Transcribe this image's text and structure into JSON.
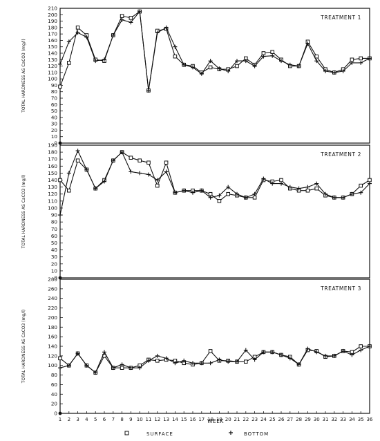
{
  "figure": {
    "xlabel": "WEEK",
    "ylabel": "TOTAL HARDNESS AS CaCO3 (mg/l)",
    "legend": {
      "surface": "SURFACE",
      "bottom": "BOTTOM",
      "placement": "bottom-center"
    },
    "colors": {
      "ink": "#111111",
      "background": "#ffffff"
    },
    "marker_surface": "open-square",
    "marker_bottom": "plus"
  },
  "chart_data": [
    {
      "type": "line",
      "title": "TREATMENT 1",
      "x": [
        1,
        2,
        3,
        4,
        5,
        6,
        7,
        8,
        9,
        10,
        11,
        12,
        13,
        14,
        15,
        16,
        17,
        18,
        19,
        20,
        21,
        22,
        23,
        24,
        25,
        26,
        27,
        28,
        29,
        30,
        31,
        32,
        33,
        34,
        35,
        36
      ],
      "ylim": [
        0,
        210
      ],
      "yticks": [
        0,
        10,
        20,
        30,
        40,
        50,
        60,
        70,
        80,
        90,
        100,
        110,
        120,
        130,
        140,
        150,
        160,
        170,
        180,
        190,
        200,
        210
      ],
      "grid": false,
      "series": [
        {
          "name": "SURFACE",
          "marker": "square",
          "values": [
            88,
            125,
            180,
            168,
            130,
            128,
            168,
            198,
            195,
            205,
            82,
            175,
            178,
            135,
            122,
            120,
            110,
            118,
            115,
            115,
            120,
            132,
            122,
            140,
            142,
            130,
            120,
            120,
            158,
            135,
            115,
            110,
            115,
            130,
            132,
            132
          ]
        },
        {
          "name": "BOTTOM",
          "marker": "plus",
          "values": [
            123,
            158,
            172,
            165,
            128,
            130,
            168,
            192,
            188,
            205,
            82,
            172,
            180,
            150,
            122,
            118,
            108,
            128,
            116,
            112,
            128,
            128,
            120,
            135,
            136,
            128,
            122,
            120,
            155,
            128,
            112,
            110,
            112,
            125,
            125,
            132
          ]
        }
      ]
    },
    {
      "type": "line",
      "title": "TREATMENT 2",
      "x": [
        1,
        2,
        3,
        4,
        5,
        6,
        7,
        8,
        9,
        10,
        11,
        12,
        13,
        14,
        15,
        16,
        17,
        18,
        19,
        20,
        21,
        22,
        23,
        24,
        25,
        26,
        27,
        28,
        29,
        30,
        31,
        32,
        33,
        34,
        35,
        36
      ],
      "ylim": [
        0,
        190
      ],
      "yticks": [
        0,
        10,
        20,
        30,
        40,
        50,
        60,
        70,
        80,
        90,
        100,
        110,
        120,
        130,
        140,
        150,
        160,
        170,
        180,
        190
      ],
      "grid": false,
      "series": [
        {
          "name": "SURFACE",
          "marker": "square",
          "values": [
            140,
            125,
            168,
            155,
            128,
            140,
            168,
            180,
            172,
            168,
            165,
            132,
            165,
            122,
            125,
            125,
            125,
            120,
            110,
            120,
            118,
            115,
            115,
            140,
            138,
            140,
            128,
            125,
            125,
            128,
            118,
            115,
            115,
            120,
            132,
            140
          ]
        },
        {
          "name": "BOTTOM",
          "marker": "plus",
          "values": [
            90,
            150,
            182,
            155,
            128,
            138,
            168,
            180,
            152,
            150,
            148,
            140,
            152,
            122,
            125,
            122,
            125,
            115,
            118,
            130,
            120,
            115,
            120,
            142,
            135,
            135,
            130,
            128,
            130,
            135,
            120,
            115,
            115,
            120,
            122,
            135
          ]
        }
      ]
    },
    {
      "type": "line",
      "title": "TREATMENT 3",
      "x": [
        1,
        2,
        3,
        4,
        5,
        6,
        7,
        8,
        9,
        10,
        11,
        12,
        13,
        14,
        15,
        16,
        17,
        18,
        19,
        20,
        21,
        22,
        23,
        24,
        25,
        26,
        27,
        28,
        29,
        30,
        31,
        32,
        33,
        34,
        35,
        36
      ],
      "ylim": [
        0,
        280
      ],
      "yticks": [
        0,
        20,
        40,
        60,
        80,
        100,
        120,
        140,
        160,
        180,
        200,
        220,
        240,
        260,
        280
      ],
      "grid": false,
      "series": [
        {
          "name": "SURFACE",
          "marker": "square",
          "values": [
            115,
            100,
            125,
            100,
            85,
            120,
            95,
            95,
            95,
            100,
            112,
            110,
            112,
            110,
            105,
            102,
            105,
            130,
            110,
            110,
            108,
            108,
            118,
            128,
            128,
            122,
            118,
            102,
            132,
            130,
            118,
            120,
            130,
            128,
            140,
            140
          ]
        },
        {
          "name": "BOTTOM",
          "marker": "plus",
          "values": [
            95,
            100,
            125,
            100,
            85,
            128,
            95,
            102,
            95,
            95,
            110,
            120,
            115,
            105,
            110,
            105,
            105,
            105,
            112,
            108,
            108,
            132,
            112,
            128,
            128,
            122,
            115,
            102,
            135,
            128,
            120,
            120,
            130,
            122,
            132,
            140
          ]
        }
      ]
    }
  ]
}
